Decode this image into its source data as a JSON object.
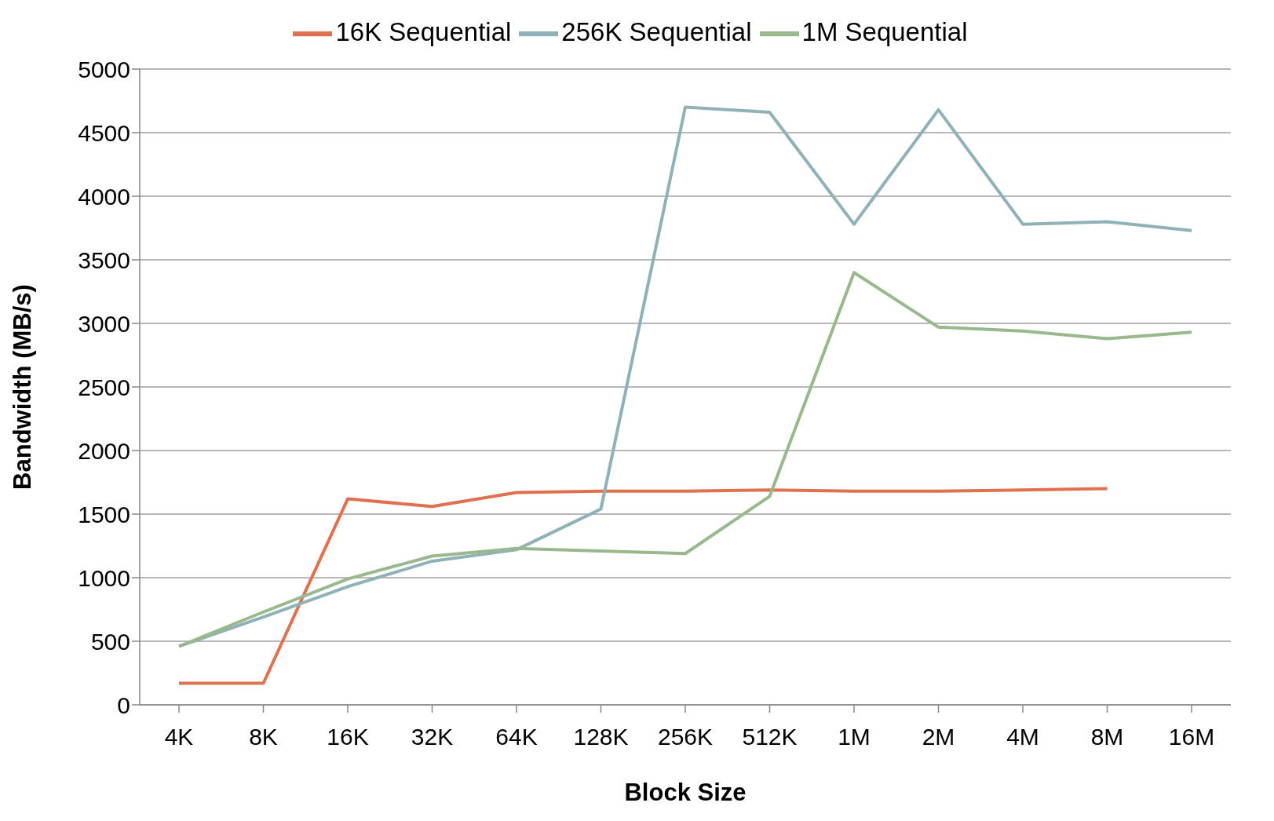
{
  "chart_data": {
    "type": "line",
    "xlabel": "Block Size",
    "ylabel": "Bandwidth (MB/s)",
    "categories": [
      "4K",
      "8K",
      "16K",
      "32K",
      "64K",
      "128K",
      "256K",
      "512K",
      "1M",
      "2M",
      "4M",
      "8M",
      "16M"
    ],
    "series": [
      {
        "name": "16K Sequential",
        "color": "#e07150",
        "values": [
          170,
          170,
          1620,
          1560,
          1670,
          1680,
          1680,
          1690,
          1680,
          1680,
          1690,
          1700,
          null
        ]
      },
      {
        "name": "256K Sequential",
        "color": "#8fb1b8",
        "values": [
          460,
          690,
          930,
          1130,
          1220,
          1540,
          4700,
          4660,
          3780,
          4680,
          3780,
          3800,
          3730
        ]
      },
      {
        "name": "1M Sequential",
        "color": "#97b98c",
        "values": [
          460,
          730,
          990,
          1170,
          1230,
          1210,
          1190,
          1640,
          3400,
          2970,
          2940,
          2880,
          2930
        ]
      }
    ],
    "ylim": [
      0,
      5000
    ],
    "yticks": [
      0,
      500,
      1000,
      1500,
      2000,
      2500,
      3000,
      3500,
      4000,
      4500,
      5000
    ],
    "grid": "y",
    "legend": "top",
    "marker": "none",
    "line_style": "solid"
  }
}
